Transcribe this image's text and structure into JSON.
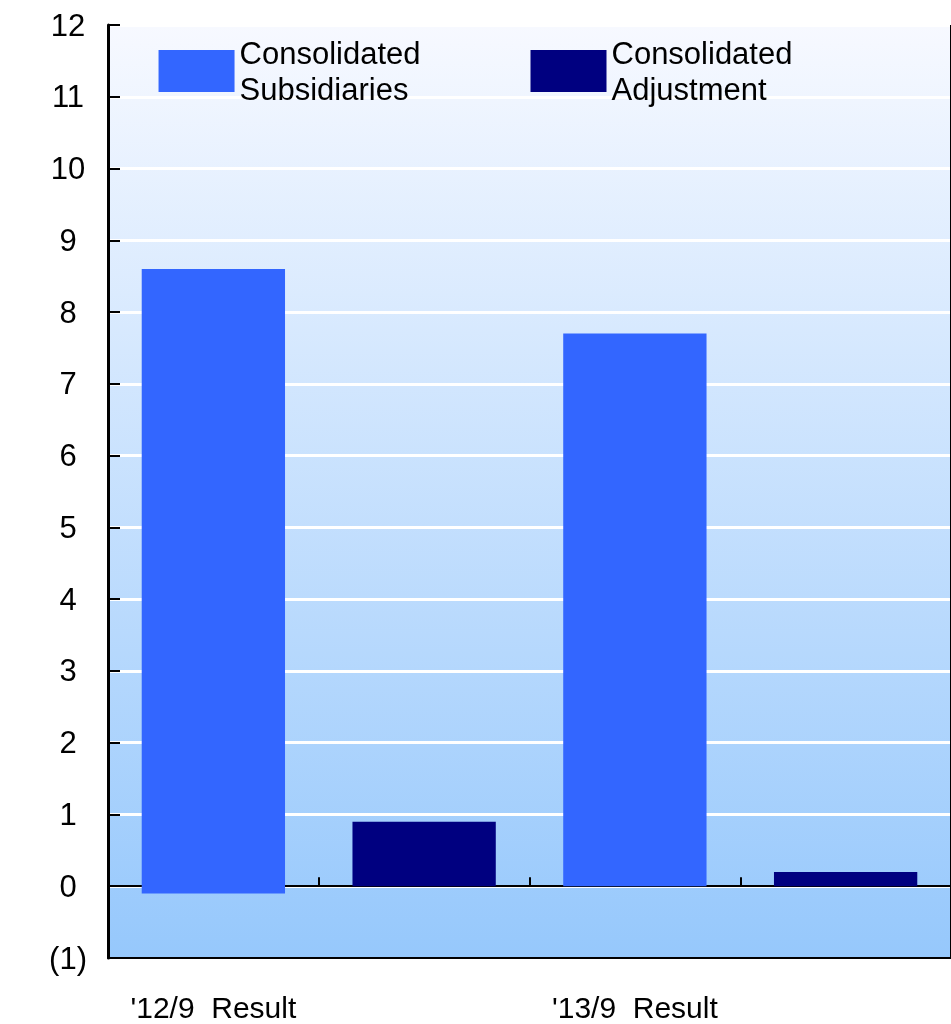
{
  "chart_data": {
    "type": "bar",
    "categories": [
      "'12/9  Result",
      null,
      "'13/9  Result",
      null
    ],
    "series": [
      {
        "name": "Consolidated Subsidiaries",
        "color": "#3366ff",
        "values": [
          8.7,
          null,
          7.7,
          null
        ],
        "base": [
          -0.1,
          null,
          0,
          null
        ]
      },
      {
        "name": "Consolidated Adjustment",
        "color": "#000080",
        "values": [
          null,
          0.9,
          null,
          0.2
        ],
        "base": [
          null,
          0,
          null,
          0
        ]
      }
    ],
    "ylim": [
      -1,
      12
    ],
    "yticks": [
      {
        "value": -1,
        "label": "(1)"
      },
      0,
      1,
      2,
      3,
      4,
      5,
      6,
      7,
      8,
      9,
      10,
      11,
      12
    ],
    "grid": "y",
    "legend": "top"
  }
}
